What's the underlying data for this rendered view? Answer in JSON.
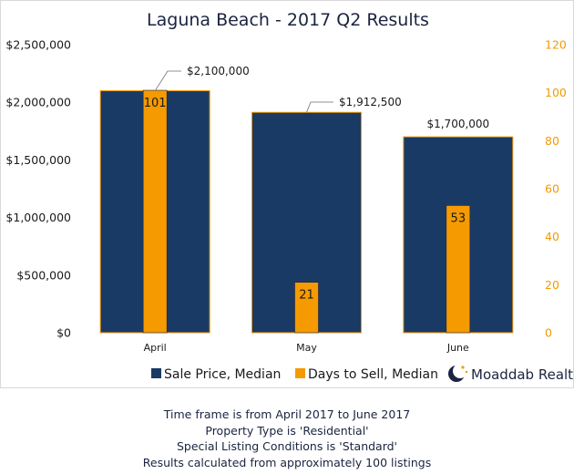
{
  "chart_data": {
    "type": "bar",
    "title": "Laguna Beach - 2017 Q2 Results",
    "categories": [
      "April",
      "May",
      "June"
    ],
    "series": [
      {
        "name": "Sale Price, Median",
        "axis": "left",
        "color": "#1a3a66",
        "values": [
          2100000,
          1912500,
          1700000
        ],
        "labels": [
          "$2,100,000",
          "$1,912,500",
          "$1,700,000"
        ]
      },
      {
        "name": "Days to Sell, Median",
        "axis": "right",
        "color": "#f59a00",
        "values": [
          101,
          21,
          53
        ],
        "labels": [
          "101",
          "21",
          "53"
        ]
      }
    ],
    "left_axis": {
      "ylim": [
        0,
        2500000
      ],
      "ticks": [
        0,
        500000,
        1000000,
        1500000,
        2000000,
        2500000
      ],
      "tick_labels": [
        "$0",
        "$500,000",
        "$1,000,000",
        "$1,500,000",
        "$2,000,000",
        "$2,500,000"
      ]
    },
    "right_axis": {
      "ylim": [
        0,
        120
      ],
      "ticks": [
        0,
        20,
        40,
        60,
        80,
        100,
        120
      ],
      "tick_labels": [
        "0",
        "20",
        "40",
        "60",
        "80",
        "100",
        "120"
      ],
      "color": "#f59a00"
    },
    "grid": false,
    "legend_position": "bottom-center"
  },
  "brand": {
    "logo_text": "Moaddab Realty",
    "logo_icon": "crescent-moon-icon"
  },
  "footer": {
    "lines": [
      "Time frame is from April 2017 to June 2017",
      "Property Type is 'Residential'",
      "Special Listing Conditions is 'Standard'",
      "Results calculated from approximately 100 listings"
    ]
  }
}
